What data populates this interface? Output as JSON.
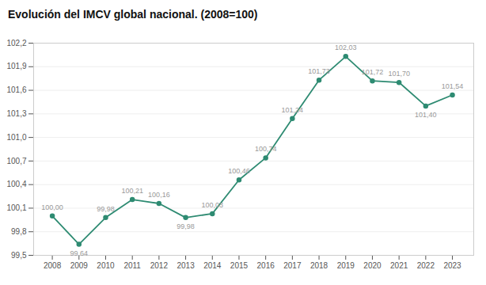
{
  "chart_data": {
    "type": "line",
    "title": "Evolución del IMCV global nacional. (2008=100)",
    "x": [
      2008,
      2009,
      2010,
      2011,
      2012,
      2013,
      2014,
      2015,
      2016,
      2017,
      2018,
      2019,
      2020,
      2021,
      2022,
      2023
    ],
    "values": [
      100.0,
      99.64,
      99.98,
      100.21,
      100.16,
      99.98,
      100.03,
      100.46,
      100.74,
      101.24,
      101.73,
      102.03,
      101.72,
      101.7,
      101.4,
      101.54
    ],
    "value_labels": [
      "100,00",
      "99,64",
      "99,98",
      "100,21",
      "100,16",
      "99,98",
      "100,03",
      "100,46",
      "100,74",
      "101,24",
      "101,73",
      "102,03",
      "101,72",
      "101,70",
      "101,40",
      "101,54"
    ],
    "data_labels": true,
    "color": "#2e8b72",
    "marker": "circle",
    "xlim": [
      2007.3,
      2023.8
    ],
    "xticks": [
      2008,
      2009,
      2010,
      2011,
      2012,
      2013,
      2014,
      2015,
      2016,
      2017,
      2018,
      2019,
      2020,
      2021,
      2022,
      2023
    ],
    "ylim": [
      99.5,
      102.2
    ],
    "yticks": [
      {
        "value": 99.5,
        "label": "99,5"
      },
      {
        "value": 99.8,
        "label": "99,8"
      },
      {
        "value": 100.1,
        "label": "100,1"
      },
      {
        "value": 100.4,
        "label": "100,4"
      },
      {
        "value": 100.7,
        "label": "100,7"
      },
      {
        "value": 101.0,
        "label": "101,0"
      },
      {
        "value": 101.3,
        "label": "101,3"
      },
      {
        "value": 101.6,
        "label": "101,6"
      },
      {
        "value": 101.9,
        "label": "101,9"
      },
      {
        "value": 102.2,
        "label": "102,2"
      }
    ],
    "grid": true
  }
}
